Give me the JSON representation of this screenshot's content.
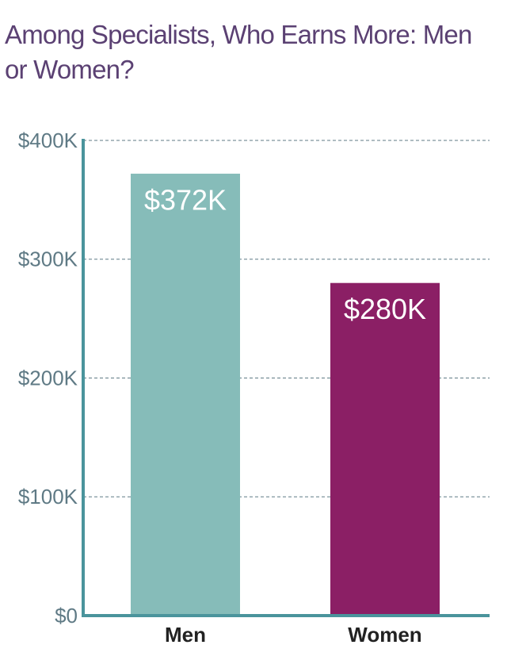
{
  "chart_data": {
    "type": "bar",
    "title": "Among Specialists, Who Earns More: Men or Women?",
    "categories": [
      "Men",
      "Women"
    ],
    "values": [
      372000,
      280000
    ],
    "value_labels": [
      "$372K",
      "$280K"
    ],
    "colors": [
      "#86bcb9",
      "#8b1f65"
    ],
    "ylim": [
      0,
      400000
    ],
    "yticks": [
      {
        "value": 0,
        "label": "$0"
      },
      {
        "value": 100000,
        "label": "$100K"
      },
      {
        "value": 200000,
        "label": "$200K"
      },
      {
        "value": 300000,
        "label": "$300K"
      },
      {
        "value": 400000,
        "label": "$400K"
      }
    ],
    "grid": true
  }
}
